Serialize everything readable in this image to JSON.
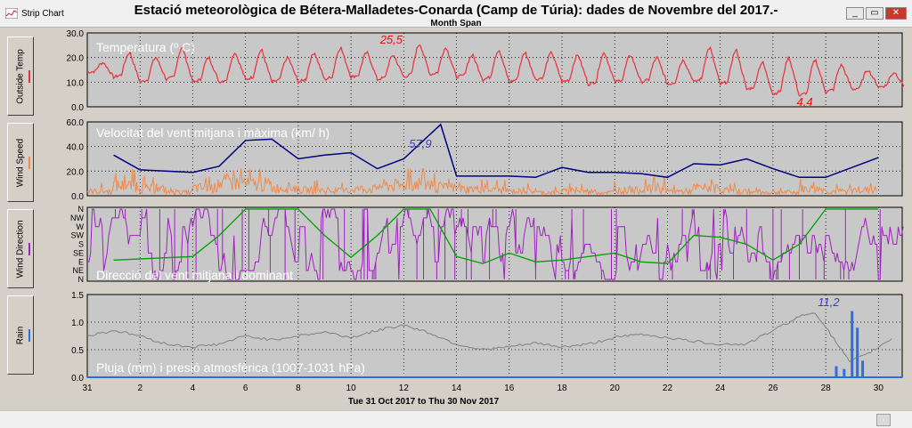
{
  "window": {
    "app_name": "Strip Chart",
    "title": "Estació meteorològica de Bétera-Malladetes-Conarda (Camp de Túria): dades de Novembre del 2017.-",
    "subtitle": "Month Span",
    "minimize": "_",
    "restore": "▭",
    "close": "✕"
  },
  "sidebar": [
    {
      "label": "Outside Temp",
      "color": "#e8303c"
    },
    {
      "label": "Wind Speed",
      "color": "#f08a4b"
    },
    {
      "label": "Wind Direction",
      "color": "#a020c0"
    },
    {
      "label": "Rain",
      "color": "#2a70e0"
    }
  ],
  "chart_data": {
    "type": "line",
    "x_labels": [
      "31",
      "2",
      "4",
      "6",
      "8",
      "10",
      "12",
      "14",
      "16",
      "18",
      "20",
      "22",
      "24",
      "26",
      "28",
      "30"
    ],
    "date_range": "Tue 31 Oct 2017  to  Thu 30 Nov 2017",
    "panels": [
      {
        "title": "Temperatura (º C)",
        "ylim": [
          0,
          30
        ],
        "yticks": [
          "0.0",
          "10.0",
          "20.0",
          "30.0"
        ],
        "annotations": [
          {
            "text": "25,5",
            "color": "#e01010"
          },
          {
            "text": "4,4",
            "color": "#e01010"
          }
        ],
        "series": [
          {
            "color": "#e8303c",
            "daily_max": [
              18,
              22,
              20,
              24,
              20,
              22,
              23,
              20,
              22,
              24,
              22,
              21,
              25.5,
              24,
              21,
              23,
              22,
              22,
              21,
              22,
              21,
              20,
              19,
              24,
              23,
              18,
              20,
              19,
              17,
              15,
              14
            ],
            "daily_min": [
              14,
              12,
              10,
              11,
              10,
              10,
              11,
              10,
              10,
              11,
              12,
              11,
              12,
              13,
              12,
              11,
              10,
              11,
              10,
              9,
              10,
              10,
              9,
              10,
              9,
              7,
              5,
              4.4,
              6,
              7,
              8
            ]
          }
        ]
      },
      {
        "title": "Velocitat del vent mitjana i màxima (km/ h)",
        "ylim": [
          0,
          60
        ],
        "yticks": [
          "0.0",
          "20.0",
          "40.0",
          "60.0"
        ],
        "annotations": [
          {
            "text": "57,9",
            "color": "#3c3cc8"
          }
        ],
        "series": [
          {
            "color": "#000080",
            "x": [
              1,
              2,
              4,
              5,
              6,
              7,
              8,
              9,
              10,
              11,
              12,
              13.4,
              14,
              16,
              17,
              18,
              19,
              20,
              21,
              22,
              23,
              24,
              25,
              26,
              27,
              28,
              29,
              30
            ],
            "y": [
              33,
              21,
              19,
              24,
              45,
              46,
              30,
              33,
              35,
              22,
              30,
              57.9,
              16,
              16,
              15,
              23,
              19,
              19,
              18,
              15,
              26,
              25,
              30,
              22,
              15,
              15,
              23,
              31
            ]
          },
          {
            "color": "#f08a4b",
            "baseline": [
              4,
              9,
              6,
              3,
              7,
              12,
              10,
              7,
              5,
              4,
              6,
              9,
              11,
              7,
              6,
              5,
              4,
              3,
              4,
              3,
              5,
              6,
              4,
              7,
              4,
              3,
              3,
              6,
              4,
              5
            ]
          }
        ]
      },
      {
        "title": "Direcció del vent mitjana i dominant",
        "ytick_labels": [
          "N",
          "NE",
          "E",
          "SE",
          "S",
          "SW",
          "W",
          "NW",
          "N"
        ],
        "series": [
          {
            "color": "#a020c0",
            "name": ""
          },
          {
            "color": "#00a000",
            "x": [
              1,
              4,
              5,
              6,
              8,
              9,
              10,
              11,
              12,
              13,
              14,
              15,
              16,
              17,
              18,
              19,
              20,
              21,
              22,
              23,
              24,
              25,
              26,
              27,
              28,
              29,
              30
            ],
            "y": [
              2.2,
              2.6,
              5,
              8,
              8,
              5,
              2.5,
              5,
              8,
              8,
              2.6,
              1.8,
              3,
              2,
              2.2,
              2.6,
              3,
              2,
              1.8,
              5,
              4.8,
              4,
              2.2,
              4,
              8,
              8,
              8
            ]
          }
        ]
      },
      {
        "title": "Pluja (mm) i presió atmosfèrica (1007-1031 hPa)",
        "ylim": [
          0,
          1.5
        ],
        "yticks": [
          "0.0",
          "0.5",
          "1.0",
          "1.5"
        ],
        "annotations": [
          {
            "text": "11,2",
            "color": "#3c3cc8"
          }
        ],
        "series": [
          {
            "color": "#808080",
            "name": ""
          },
          {
            "color": "#2a70e0",
            "x": [
              28.4,
              28.7,
              29,
              29.2,
              29.4
            ],
            "y": [
              0.2,
              0.15,
              1.2,
              0.9,
              0.3
            ]
          }
        ]
      }
    ]
  }
}
